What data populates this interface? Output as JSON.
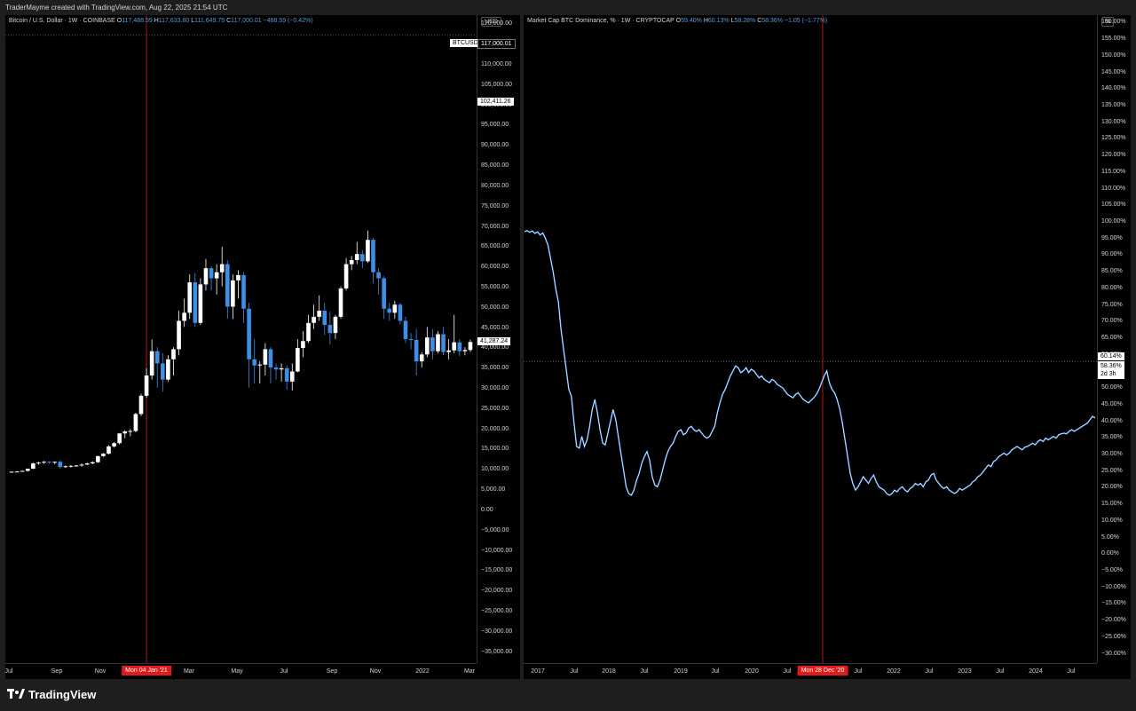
{
  "header": {
    "credit": "TraderMayme created with TradingView.com, Aug 22, 2025 21:54 UTC"
  },
  "footer": {
    "logo_icon": "tradingview-logo-icon",
    "brand": "TradingView"
  },
  "colors": {
    "up": "#ffffff",
    "down": "#3d8ee6",
    "crosshair": "#e01b1b",
    "background": "#000000"
  },
  "left_chart": {
    "legend": {
      "symbol": "Bitcoin / U.S. Dollar · 1W · COINBASE",
      "o_label": "O",
      "o": "117,488.59",
      "h_label": "H",
      "h": "117,633.80",
      "l_label": "L",
      "l": "111,649.75",
      "c_label": "C",
      "c": "117,000.01",
      "chg": "−488.59 (−0.42%)"
    },
    "unit": "USD",
    "price_labels": {
      "symbol_tag": "BTCUSD",
      "last": "117,000.01",
      "mid": "102,411.26",
      "crosshair": "41,287.24"
    },
    "y_ticks": [
      "120,000.00",
      "115,000.00",
      "110,000.00",
      "105,000.00",
      "100,000.00",
      "95,000.00",
      "90,000.00",
      "85,000.00",
      "80,000.00",
      "75,000.00",
      "70,000.00",
      "65,000.00",
      "60,000.00",
      "55,000.00",
      "50,000.00",
      "45,000.00",
      "40,000.00",
      "35,000.00",
      "30,000.00",
      "25,000.00",
      "20,000.00",
      "15,000.00",
      "10,000.00",
      "5,000.00",
      "0.00",
      "−5,000.00",
      "−10,000.00",
      "−15,000.00",
      "−20,000.00",
      "−25,000.00",
      "−30,000.00",
      "−35,000.00"
    ],
    "x_ticks": [
      "Jul",
      "Sep",
      "Nov",
      "Mar",
      "May",
      "Jul",
      "Sep",
      "Nov",
      "2022",
      "Mar"
    ],
    "x_highlight": "Mon 04 Jan '21"
  },
  "right_chart": {
    "legend": {
      "symbol": "Market Cap BTC Dominance, % · 1W · CRYPTOCAP",
      "o_label": "O",
      "o": "59.40%",
      "h_label": "H",
      "h": "60.13%",
      "l_label": "L",
      "l": "58.28%",
      "c_label": "C",
      "c": "58.36%",
      "chg": "−1.05 (−1.77%)"
    },
    "unit": "%",
    "price_labels": {
      "crosshair": "60.14%",
      "last": "58.36%",
      "countdown": "2d 3h"
    },
    "y_ticks": [
      "160.00%",
      "155.00%",
      "150.00%",
      "145.00%",
      "140.00%",
      "135.00%",
      "130.00%",
      "125.00%",
      "120.00%",
      "115.00%",
      "110.00%",
      "105.00%",
      "100.00%",
      "95.00%",
      "90.00%",
      "85.00%",
      "80.00%",
      "75.00%",
      "70.00%",
      "65.00%",
      "60.00%",
      "55.00%",
      "50.00%",
      "45.00%",
      "40.00%",
      "35.00%",
      "30.00%",
      "25.00%",
      "20.00%",
      "15.00%",
      "10.00%",
      "5.00%",
      "0.00%",
      "−5.00%",
      "−10.00%",
      "−15.00%",
      "−20.00%",
      "−25.00%",
      "−30.00%"
    ],
    "x_ticks": [
      "2017",
      "Jul",
      "2018",
      "Jul",
      "2019",
      "Jul",
      "2020",
      "Jul",
      "Jul",
      "2022",
      "Jul",
      "2023",
      "Jul",
      "2024",
      "Jul"
    ],
    "x_highlight": "Mon 28 Dec '20"
  },
  "chart_data": [
    {
      "type": "candlestick",
      "ylim": [
        -38000,
        122000
      ],
      "candles": [
        [
          9200,
          9300,
          9100,
          9250
        ],
        [
          9250,
          9400,
          9100,
          9300
        ],
        [
          9300,
          9500,
          9200,
          9450
        ],
        [
          9450,
          9800,
          9300,
          10000
        ],
        [
          10000,
          11500,
          9900,
          11300
        ],
        [
          11300,
          11700,
          11000,
          11500
        ],
        [
          11500,
          11900,
          11200,
          11700
        ],
        [
          11700,
          11800,
          11200,
          11600
        ],
        [
          11600,
          11800,
          11100,
          11700
        ],
        [
          11700,
          12000,
          10000,
          10400
        ],
        [
          10400,
          10800,
          10200,
          10600
        ],
        [
          10600,
          10900,
          10300,
          10700
        ],
        [
          10700,
          10900,
          10400,
          10800
        ],
        [
          10800,
          11300,
          10500,
          11000
        ],
        [
          11000,
          11500,
          10900,
          11300
        ],
        [
          11300,
          11800,
          11100,
          11600
        ],
        [
          11600,
          13200,
          11400,
          13100
        ],
        [
          13100,
          13900,
          12900,
          13700
        ],
        [
          13700,
          15800,
          13500,
          15500
        ],
        [
          15500,
          16600,
          15200,
          16300
        ],
        [
          16300,
          18800,
          16000,
          18700
        ],
        [
          18700,
          19500,
          17500,
          19200
        ],
        [
          19200,
          19800,
          18000,
          19300
        ],
        [
          19300,
          23800,
          19000,
          23500
        ],
        [
          23500,
          28500,
          23000,
          28000
        ],
        [
          28000,
          34800,
          27500,
          33000
        ],
        [
          33000,
          41900,
          32000,
          39000
        ],
        [
          39000,
          40000,
          30000,
          36000
        ],
        [
          36000,
          38500,
          29000,
          32000
        ],
        [
          32000,
          38000,
          31500,
          37000
        ],
        [
          37000,
          40000,
          33000,
          39500
        ],
        [
          39500,
          49000,
          38000,
          46500
        ],
        [
          46500,
          52000,
          45000,
          48500
        ],
        [
          48500,
          58000,
          47000,
          56000
        ],
        [
          56000,
          58300,
          45000,
          46000
        ],
        [
          46000,
          57000,
          45500,
          55500
        ],
        [
          55500,
          61800,
          54000,
          59500
        ],
        [
          59500,
          60000,
          54000,
          57000
        ],
        [
          57000,
          60500,
          53000,
          58500
        ],
        [
          58500,
          64800,
          55000,
          60500
        ],
        [
          60500,
          61500,
          47000,
          50000
        ],
        [
          50000,
          58000,
          47000,
          56500
        ],
        [
          56500,
          59000,
          52000,
          57800
        ],
        [
          57800,
          58500,
          46000,
          49500
        ],
        [
          49500,
          51000,
          30000,
          37000
        ],
        [
          37000,
          42000,
          31000,
          35500
        ],
        [
          35500,
          36500,
          31000,
          35700
        ],
        [
          35700,
          41000,
          33000,
          39500
        ],
        [
          39500,
          40000,
          31000,
          35000
        ],
        [
          35000,
          36000,
          32000,
          34500
        ],
        [
          34500,
          36000,
          31500,
          34800
        ],
        [
          34800,
          35500,
          29500,
          31500
        ],
        [
          31500,
          36000,
          29300,
          34000
        ],
        [
          34000,
          42000,
          33800,
          39800
        ],
        [
          39800,
          44000,
          37500,
          41500
        ],
        [
          41500,
          48000,
          41000,
          46000
        ],
        [
          46000,
          50500,
          44500,
          47500
        ],
        [
          47500,
          52800,
          46500,
          49000
        ],
        [
          49000,
          51000,
          43000,
          45500
        ],
        [
          45500,
          48800,
          40700,
          43500
        ],
        [
          43500,
          48000,
          42000,
          47500
        ],
        [
          47500,
          55000,
          47000,
          54500
        ],
        [
          54500,
          62000,
          54000,
          60500
        ],
        [
          60500,
          62500,
          59000,
          61500
        ],
        [
          61500,
          66000,
          60500,
          63000
        ],
        [
          63000,
          64000,
          59500,
          61200
        ],
        [
          61200,
          68800,
          60800,
          66500
        ],
        [
          66500,
          67000,
          55800,
          58500
        ],
        [
          58500,
          59500,
          53000,
          57000
        ],
        [
          57000,
          57500,
          47000,
          49500
        ],
        [
          49500,
          51000,
          46500,
          48500
        ],
        [
          48500,
          51500,
          47000,
          50500
        ],
        [
          50500,
          51000,
          45600,
          46500
        ],
        [
          46500,
          47500,
          41000,
          42000
        ],
        [
          42000,
          43500,
          39500,
          41800
        ],
        [
          41800,
          44500,
          33000,
          36500
        ],
        [
          36500,
          38800,
          35000,
          38200
        ],
        [
          38200,
          45000,
          37500,
          42400
        ],
        [
          42400,
          44500,
          37000,
          39000
        ],
        [
          39000,
          44000,
          38500,
          43200
        ],
        [
          43200,
          45000,
          38000,
          38800
        ],
        [
          38800,
          42000,
          37000,
          39200
        ],
        [
          39200,
          48000,
          38500,
          41200
        ],
        [
          41200,
          42000,
          37800,
          39000
        ],
        [
          39000,
          40000,
          38000,
          39300
        ],
        [
          39300,
          41900,
          38800,
          41287
        ]
      ]
    },
    {
      "type": "line",
      "ylim": [
        -31.5,
        161.5
      ],
      "values": [
        97.0,
        97.3,
        96.8,
        97.2,
        96.5,
        96.9,
        96.0,
        96.6,
        95.0,
        93.0,
        89.0,
        85.0,
        80.0,
        76.0,
        68.0,
        62.0,
        56.0,
        50.0,
        48.0,
        40.0,
        33.0,
        32.5,
        36.0,
        33.0,
        35.0,
        39.0,
        44.0,
        47.0,
        43.0,
        38.0,
        34.0,
        33.5,
        37.0,
        40.5,
        44.0,
        41.0,
        36.0,
        31.0,
        26.0,
        21.0,
        19.0,
        18.5,
        20.0,
        23.0,
        25.0,
        28.0,
        30.0,
        31.5,
        29.0,
        24.0,
        21.5,
        21.0,
        23.0,
        26.0,
        29.0,
        31.5,
        33.0,
        34.0,
        36.0,
        37.5,
        38.0,
        36.5,
        37.0,
        38.5,
        39.0,
        38.0,
        37.5,
        38.0,
        37.0,
        36.0,
        35.5,
        36.0,
        37.5,
        39.0,
        43.0,
        46.0,
        48.5,
        50.0,
        52.0,
        54.0,
        55.5,
        57.0,
        56.5,
        55.0,
        55.5,
        56.5,
        55.0,
        56.0,
        55.5,
        54.5,
        53.5,
        54.0,
        53.0,
        52.5,
        52.0,
        53.0,
        52.5,
        51.5,
        51.0,
        50.5,
        49.5,
        48.5,
        48.0,
        47.5,
        48.5,
        49.0,
        48.0,
        47.0,
        46.5,
        46.0,
        46.8,
        47.5,
        48.5,
        50.0,
        52.0,
        54.0,
        55.5,
        52.0,
        50.0,
        49.0,
        47.0,
        44.0,
        40.0,
        35.0,
        30.0,
        25.0,
        22.0,
        20.0,
        21.0,
        22.5,
        24.0,
        23.0,
        22.0,
        23.5,
        24.5,
        22.5,
        21.0,
        20.5,
        20.0,
        19.0,
        18.5,
        19.0,
        20.0,
        19.5,
        20.5,
        21.0,
        20.0,
        19.5,
        20.5,
        21.0,
        22.0,
        21.5,
        22.0,
        21.0,
        22.5,
        23.0,
        24.5,
        25.0,
        23.0,
        22.0,
        21.0,
        20.5,
        21.0,
        20.0,
        19.5,
        19.0,
        19.5,
        20.5,
        20.0,
        20.5,
        21.0,
        21.5,
        22.5,
        23.0,
        24.0,
        24.5,
        25.5,
        26.5,
        27.5,
        27.0,
        28.5,
        29.0,
        30.0,
        30.5,
        31.0,
        30.5,
        31.0,
        32.0,
        32.5,
        33.0,
        32.5,
        32.0,
        32.8,
        33.0,
        33.5,
        34.0,
        33.5,
        34.5,
        35.0,
        34.5,
        35.5,
        35.0,
        35.5,
        36.0,
        35.5,
        36.5,
        36.8,
        37.0,
        36.8,
        37.5,
        38.0,
        37.5,
        38.0,
        38.5,
        39.0,
        39.5,
        40.0,
        41.0,
        42.0,
        41.5
      ]
    }
  ]
}
